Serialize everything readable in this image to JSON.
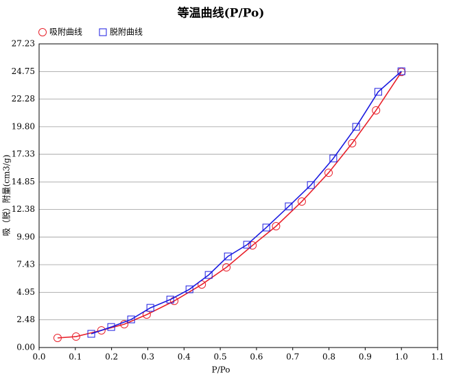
{
  "chart_data": {
    "type": "line",
    "title": "等温曲线(P/Po)",
    "x_label": "P/Po",
    "y_label": "吸（脱）附量(cm3/g)",
    "xlim": [
      0,
      1.1
    ],
    "xticks": [
      {
        "value": 0,
        "label": "0.0"
      },
      0.1,
      0.2,
      0.3,
      0.4,
      0.5,
      0.6,
      0.7,
      0.8,
      0.9,
      {
        "value": 1,
        "label": "1.0"
      },
      1.1
    ],
    "ylim": [
      0,
      27.23
    ],
    "yticks": [
      {
        "value": 0,
        "label": "0.00"
      },
      2.48,
      4.95,
      7.43,
      {
        "value": 9.9,
        "label": "9.90"
      },
      12.38,
      14.85,
      17.33,
      {
        "value": 19.8,
        "label": "19.80"
      },
      22.28,
      24.75,
      27.23
    ],
    "grid": true,
    "legend": "top-left",
    "series": [
      {
        "name": "吸附曲线",
        "color": "#e8202a",
        "marker": "circle",
        "x": [
          0.051,
          0.102,
          0.172,
          0.235,
          0.297,
          0.373,
          0.449,
          0.517,
          0.589,
          0.654,
          0.725,
          0.799,
          0.864,
          0.93,
          1.0
        ],
        "values": [
          0.86,
          0.98,
          1.54,
          2.09,
          2.95,
          4.18,
          5.65,
          7.19,
          9.16,
          10.88,
          13.09,
          15.67,
          18.32,
          21.27,
          24.71
        ]
      },
      {
        "name": "脱附曲线",
        "color": "#1a1ae0",
        "marker": "square",
        "x": [
          0.144,
          0.199,
          0.254,
          0.307,
          0.362,
          0.415,
          0.468,
          0.521,
          0.574,
          0.627,
          0.689,
          0.75,
          0.812,
          0.875,
          0.936,
          1.0
        ],
        "values": [
          1.23,
          1.84,
          2.52,
          3.56,
          4.3,
          5.22,
          6.51,
          8.17,
          9.22,
          10.76,
          12.66,
          14.57,
          16.96,
          19.79,
          22.93,
          24.77
        ]
      }
    ]
  }
}
